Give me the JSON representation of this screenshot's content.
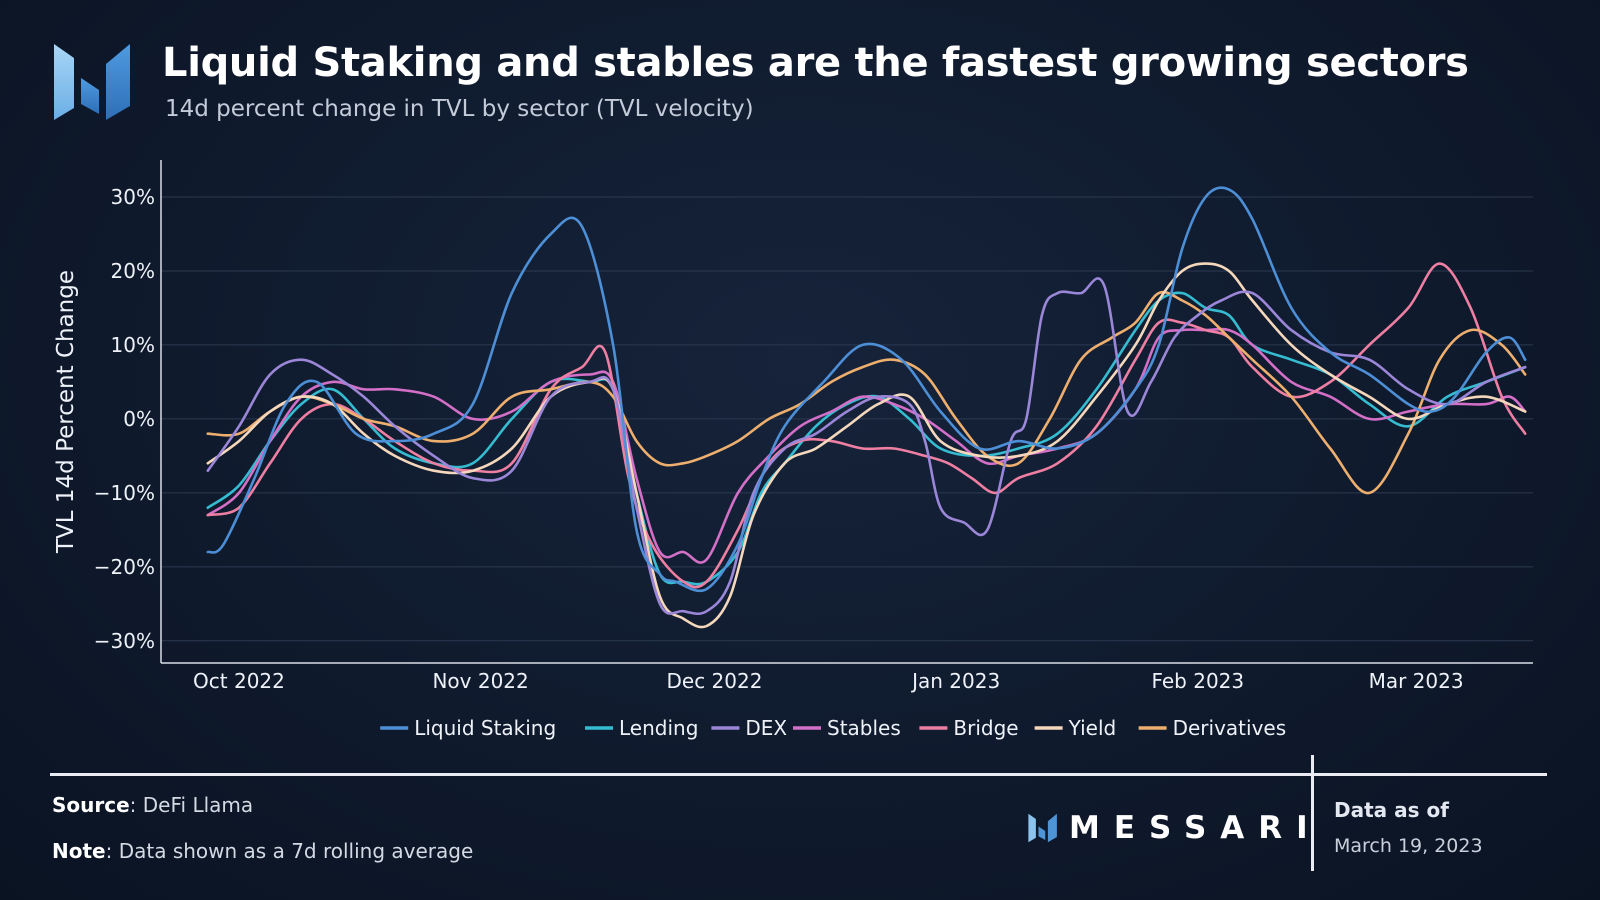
{
  "header": {
    "title": "Liquid Staking and stables are the fastest growing sectors",
    "subtitle": "14d percent change in TVL by sector (TVL velocity)"
  },
  "footer": {
    "source_label": "Source",
    "source_value": "DeFi Llama",
    "note_label": "Note",
    "note_value": "Data shown as a 7d rolling average",
    "brand": "MESSARI",
    "asof_label": "Data as of",
    "asof_date": "March 19, 2023"
  },
  "colors": {
    "brand_light": "#8cc3ee",
    "brand_mid": "#4f95d6",
    "brand_dark": "#2c69b3"
  },
  "chart_data": {
    "type": "line",
    "title": "Liquid Staking and stables are the fastest growing sectors",
    "subtitle": "14d percent change in TVL by sector (TVL velocity)",
    "xlabel": "",
    "ylabel": "TVL 14d Percent Change",
    "ylim": [
      -33,
      35
    ],
    "yticks": [
      -30,
      -20,
      -10,
      0,
      10,
      20,
      30
    ],
    "ytick_labels": [
      "−30%",
      "−20%",
      "−10%",
      "0%",
      "10%",
      "20%",
      "30%"
    ],
    "xlim": [
      -10,
      166
    ],
    "xticks": [
      0,
      31,
      61,
      92,
      123,
      151
    ],
    "xtick_labels": [
      "Oct 2022",
      "Nov 2022",
      "Dec 2022",
      "Jan 2023",
      "Feb 2023",
      "Mar 2023"
    ],
    "x_unit": "days since 2022-10-01",
    "grid": true,
    "legend_position": "bottom",
    "series": [
      {
        "name": "Liquid Staking",
        "color": "#4d8fd6",
        "x": [
          -4,
          -2,
          2,
          6,
          10,
          15,
          20,
          25,
          30,
          35,
          40,
          44,
          48,
          51,
          54,
          56,
          60,
          64,
          67,
          70,
          75,
          80,
          85,
          90,
          95,
          100,
          105,
          110,
          115,
          118,
          121,
          124,
          127,
          130,
          135,
          140,
          145,
          150,
          153,
          156,
          160,
          163,
          165
        ],
        "values": [
          -18,
          -17,
          -8,
          2,
          5,
          -2,
          -3,
          -2,
          2,
          17,
          25,
          26,
          10,
          -15,
          -21,
          -22,
          -23,
          -17,
          -8,
          -1,
          5,
          10,
          8,
          1,
          -4,
          -3,
          -4,
          -2,
          4,
          10,
          23,
          30,
          31,
          27,
          15,
          9,
          6,
          2,
          1,
          3,
          9,
          11,
          8
        ]
      },
      {
        "name": "Lending",
        "color": "#35bcd1",
        "x": [
          -4,
          0,
          4,
          8,
          12,
          16,
          20,
          25,
          30,
          35,
          40,
          45,
          48,
          51,
          54,
          57,
          60,
          64,
          67,
          70,
          74,
          78,
          82,
          86,
          90,
          95,
          100,
          105,
          110,
          115,
          118,
          121,
          124,
          127,
          130,
          135,
          140,
          145,
          150,
          155,
          160,
          165
        ],
        "values": [
          -12,
          -9,
          -3,
          2,
          4,
          0,
          -4,
          -6,
          -6,
          0,
          5,
          5,
          4,
          -10,
          -21,
          -22,
          -22,
          -18,
          -10,
          -6,
          -1,
          2,
          3,
          0,
          -4,
          -5,
          -4,
          -2,
          4,
          12,
          16,
          17,
          15,
          14,
          10,
          8,
          6,
          2,
          -1,
          3,
          5,
          7
        ]
      },
      {
        "name": "DEX",
        "color": "#9b86d8",
        "x": [
          -4,
          0,
          4,
          8,
          12,
          16,
          20,
          25,
          30,
          35,
          40,
          45,
          48,
          51,
          54,
          57,
          60,
          63,
          66,
          70,
          74,
          78,
          82,
          86,
          88,
          90,
          93,
          96,
          99,
          101,
          103,
          105,
          108,
          111,
          114,
          117,
          120,
          123,
          126,
          130,
          135,
          140,
          145,
          150,
          155,
          160,
          165
        ],
        "values": [
          -7,
          -1,
          6,
          8,
          6,
          3,
          -1,
          -5,
          -8,
          -7,
          3,
          5,
          4,
          -12,
          -25,
          -26,
          -26,
          -22,
          -10,
          -4,
          -2,
          1,
          3,
          2,
          -3,
          -12,
          -14,
          -15,
          -3,
          0,
          14,
          17,
          17,
          18,
          1,
          5,
          11,
          14,
          16,
          17,
          12,
          9,
          8,
          4,
          2,
          5,
          7
        ]
      },
      {
        "name": "Stables",
        "color": "#d36fc7",
        "x": [
          -4,
          0,
          4,
          8,
          12,
          16,
          20,
          25,
          30,
          35,
          40,
          45,
          48,
          51,
          54,
          57,
          60,
          64,
          68,
          72,
          76,
          80,
          84,
          88,
          92,
          96,
          100,
          105,
          110,
          115,
          118,
          121,
          124,
          127,
          130,
          135,
          140,
          145,
          150,
          155,
          160,
          163,
          165
        ],
        "values": [
          -13,
          -10,
          -3,
          3,
          5,
          4,
          4,
          3,
          0,
          1,
          5,
          6,
          5,
          -8,
          -18,
          -18,
          -19,
          -10,
          -5,
          -1,
          1,
          3,
          2,
          0,
          -3,
          -6,
          -5,
          -4,
          -2,
          4,
          11,
          12,
          12,
          12,
          10,
          5,
          3,
          0,
          1,
          2,
          2,
          3,
          1
        ]
      },
      {
        "name": "Bridge",
        "color": "#ee7fa2",
        "x": [
          -4,
          0,
          4,
          8,
          12,
          16,
          20,
          25,
          30,
          35,
          40,
          44,
          47,
          50,
          53,
          57,
          60,
          64,
          68,
          72,
          76,
          80,
          84,
          88,
          91,
          94,
          97,
          100,
          105,
          110,
          115,
          118,
          121,
          124,
          127,
          130,
          135,
          140,
          145,
          150,
          154,
          158,
          162,
          165
        ],
        "values": [
          -13,
          -12,
          -6,
          0,
          2,
          0,
          -3,
          -6,
          -7,
          -6,
          4,
          7,
          9,
          -8,
          -17,
          -22,
          -22,
          -15,
          -6,
          -3,
          -3,
          -4,
          -4,
          -5,
          -6,
          -8,
          -10,
          -8,
          -6,
          -1,
          8,
          13,
          13,
          12,
          11,
          7,
          3,
          5,
          10,
          15,
          21,
          15,
          3,
          -2
        ]
      },
      {
        "name": "Yield",
        "color": "#f5d8bc",
        "x": [
          -4,
          0,
          4,
          8,
          12,
          16,
          20,
          25,
          30,
          35,
          40,
          45,
          48,
          51,
          54,
          57,
          60,
          63,
          66,
          70,
          74,
          78,
          82,
          86,
          90,
          95,
          100,
          105,
          110,
          115,
          118,
          121,
          124,
          127,
          130,
          135,
          140,
          145,
          150,
          155,
          160,
          165
        ],
        "values": [
          -6,
          -3,
          1,
          3,
          2,
          -2,
          -5,
          -7,
          -7,
          -4,
          3,
          5,
          4,
          -10,
          -24,
          -27,
          -28,
          -24,
          -13,
          -6,
          -4,
          -1,
          2,
          3,
          -3,
          -5,
          -5,
          -3,
          3,
          10,
          16,
          20,
          21,
          20,
          16,
          10,
          6,
          3,
          0,
          2,
          3,
          1
        ]
      },
      {
        "name": "Derivatives",
        "color": "#eeaf6e",
        "x": [
          -4,
          0,
          4,
          8,
          12,
          16,
          20,
          25,
          30,
          35,
          40,
          45,
          48,
          51,
          54,
          57,
          60,
          64,
          68,
          72,
          76,
          80,
          84,
          88,
          92,
          96,
          100,
          104,
          108,
          112,
          115,
          118,
          121,
          124,
          127,
          130,
          135,
          140,
          145,
          150,
          154,
          158,
          162,
          165
        ],
        "values": [
          -2,
          -2,
          1,
          3,
          2,
          0,
          -1,
          -3,
          -2,
          3,
          4,
          5,
          3,
          -3,
          -6,
          -6,
          -5,
          -3,
          0,
          2,
          5,
          7,
          8,
          6,
          0,
          -5,
          -6,
          0,
          8,
          11,
          13,
          17,
          16,
          14,
          11,
          8,
          3,
          -4,
          -10,
          -2,
          8,
          12,
          10,
          6
        ]
      }
    ]
  }
}
